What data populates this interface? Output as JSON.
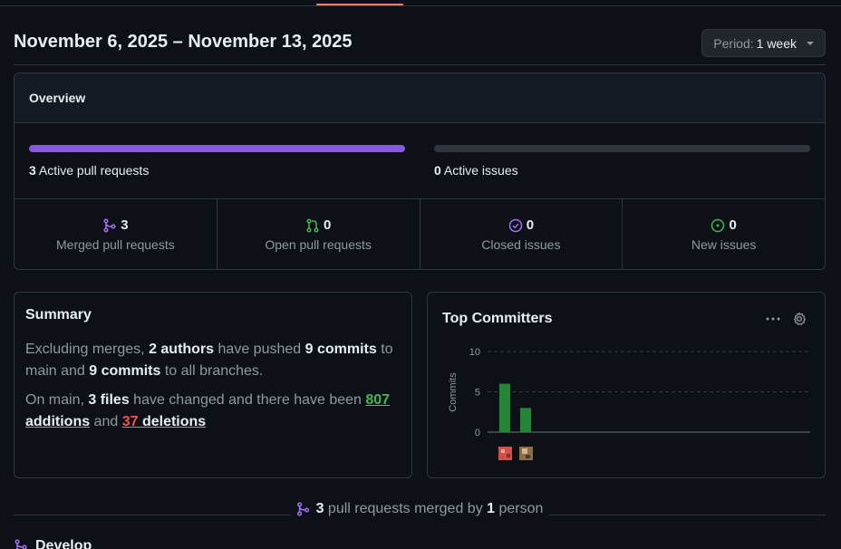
{
  "date_range": "November 6, 2025 – November 13, 2025",
  "period": {
    "label": "Period:",
    "value": "1 week"
  },
  "overview": {
    "title": "Overview",
    "active_prs": {
      "count": "3",
      "label": "Active pull requests",
      "fill": 1.0
    },
    "active_issues": {
      "count": "0",
      "label": "Active issues",
      "fill": 0.0
    },
    "stats": [
      {
        "value": "3",
        "label": "Merged pull requests",
        "icon": "merge-icon",
        "color": "#a371f7"
      },
      {
        "value": "0",
        "label": "Open pull requests",
        "icon": "pull-request-icon",
        "color": "#3fb950"
      },
      {
        "value": "0",
        "label": "Closed issues",
        "icon": "issue-closed-icon",
        "color": "#a371f7"
      },
      {
        "value": "0",
        "label": "New issues",
        "icon": "issue-opened-icon",
        "color": "#3fb950"
      }
    ]
  },
  "summary": {
    "title": "Summary",
    "p1": {
      "t1": "Excluding merges, ",
      "authors": "2 authors",
      "t2": " have pushed ",
      "commits_main": "9 commits",
      "t3": " to main and ",
      "commits_all": "9 commits",
      "t4": " to all branches."
    },
    "p2": {
      "t1": "On main, ",
      "files": "3 files",
      "t2": " have changed and there have been ",
      "additions_n": "807",
      "additions_w": " additions",
      "t3": " and ",
      "deletions_n": "37",
      "deletions_w": " deletions"
    }
  },
  "top_committers": {
    "title": "Top Committers",
    "more_icon": "kebab-horizontal-icon",
    "settings_icon": "gear-icon"
  },
  "chart_data": {
    "type": "bar",
    "ylabel": "Commits",
    "yticks": [
      0,
      5,
      10
    ],
    "ylim": [
      0,
      10
    ],
    "grid": true,
    "categories": [
      "committer-1",
      "committer-2"
    ],
    "values": [
      6,
      3
    ],
    "bar_color": "#238636"
  },
  "merged": {
    "count": "3",
    "mid": " pull requests merged by ",
    "people": "1",
    "tail": " person"
  },
  "branch": {
    "name": "Develop"
  }
}
